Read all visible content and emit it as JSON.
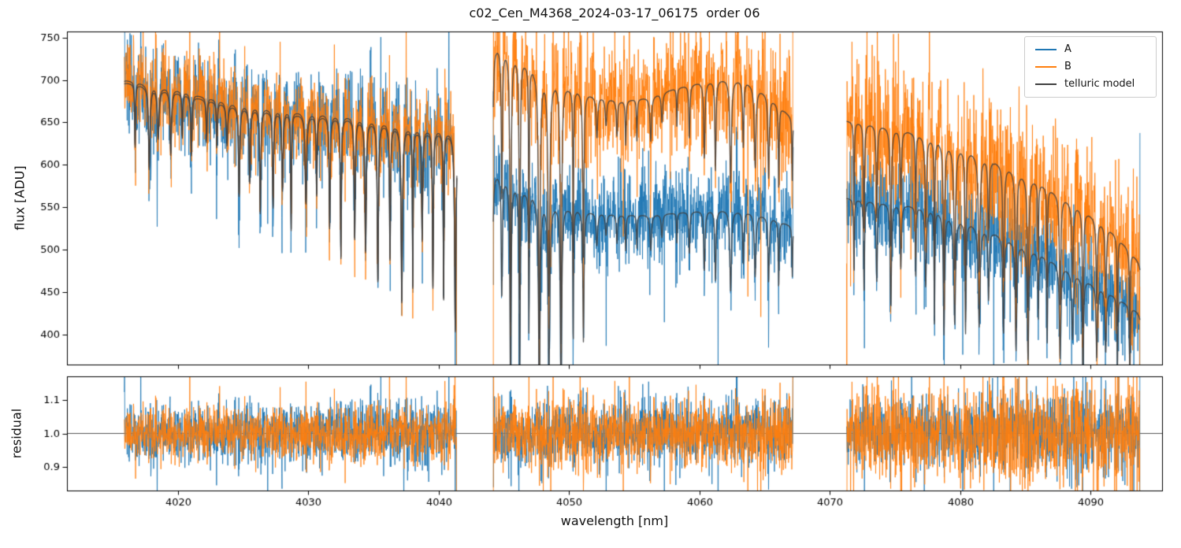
{
  "chart_data": {
    "type": "line",
    "title": "c02_Cen_M4368_2024-03-17_06175  order 06",
    "xlabel": "wavelength [nm]",
    "xlim": [
      4011.5,
      4095.5
    ],
    "xticks": [
      4020,
      4030,
      4040,
      4050,
      4060,
      4070,
      4080,
      4090
    ],
    "grid": false,
    "top_panel": {
      "ylabel": "flux [ADU]",
      "ylim": [
        365,
        757
      ],
      "yticks": [
        400,
        450,
        500,
        550,
        600,
        650,
        700,
        750
      ]
    },
    "bottom_panel": {
      "ylabel": "residual",
      "ylim": [
        0.83,
        1.17
      ],
      "yticks": [
        0.9,
        1.0,
        1.1
      ],
      "reference_line": 1.0
    },
    "legend": {
      "position": "upper right",
      "items": [
        {
          "label": "A",
          "color": "#1f77b4"
        },
        {
          "label": "B",
          "color": "#ff7f0e"
        },
        {
          "label": "telluric model",
          "color": "#404040"
        }
      ]
    },
    "segments": [
      {
        "x_range": [
          4015.9,
          4041.4
        ],
        "noise_sigma": {
          "A": 30,
          "B": 26
        },
        "continuum_A": [
          [
            4015.9,
            697
          ],
          [
            4018,
            691
          ],
          [
            4020,
            685
          ],
          [
            4022,
            677
          ],
          [
            4024,
            670
          ],
          [
            4027,
            663
          ],
          [
            4030,
            658
          ],
          [
            4033,
            654
          ],
          [
            4035,
            650
          ],
          [
            4036.5,
            645
          ],
          [
            4038,
            640
          ],
          [
            4041.4,
            635
          ]
        ],
        "continuum_B": [
          [
            4015.9,
            700
          ],
          [
            4018,
            694
          ],
          [
            4020,
            688
          ],
          [
            4022,
            680
          ],
          [
            4024,
            673
          ],
          [
            4027,
            666
          ],
          [
            4030,
            661
          ],
          [
            4033,
            657
          ],
          [
            4035,
            653
          ],
          [
            4036.5,
            648
          ],
          [
            4038,
            643
          ],
          [
            4041.4,
            638
          ]
        ]
      },
      {
        "x_range": [
          4044.2,
          4067.2
        ],
        "noise_sigma": {
          "A": 26,
          "B": 36
        },
        "continuum_A": [
          [
            4044.2,
            594
          ],
          [
            4046,
            576
          ],
          [
            4048,
            559
          ],
          [
            4050,
            549
          ],
          [
            4052,
            544
          ],
          [
            4054,
            541
          ],
          [
            4056,
            541
          ],
          [
            4058,
            543
          ],
          [
            4060,
            546
          ],
          [
            4062,
            547
          ],
          [
            4064,
            544
          ],
          [
            4065.5,
            538
          ],
          [
            4067.2,
            527
          ]
        ],
        "continuum_B": [
          [
            4044.2,
            744
          ],
          [
            4046,
            729
          ],
          [
            4048,
            707
          ],
          [
            4050,
            691
          ],
          [
            4052,
            681
          ],
          [
            4054,
            675
          ],
          [
            4056,
            679
          ],
          [
            4058,
            689
          ],
          [
            4060,
            697
          ],
          [
            4062,
            701
          ],
          [
            4063.5,
            699
          ],
          [
            4065,
            685
          ],
          [
            4067.2,
            654
          ]
        ]
      },
      {
        "x_range": [
          4071.3,
          4093.8
        ],
        "noise_sigma": {
          "A": 28,
          "B": 40
        },
        "continuum_A": [
          [
            4071.3,
            561
          ],
          [
            4074,
            556
          ],
          [
            4076,
            552
          ],
          [
            4078,
            547
          ],
          [
            4080,
            536
          ],
          [
            4082,
            524
          ],
          [
            4084,
            511
          ],
          [
            4086,
            496
          ],
          [
            4088,
            479
          ],
          [
            4090,
            461
          ],
          [
            4091.5,
            449
          ],
          [
            4093.8,
            426
          ]
        ],
        "continuum_B": [
          [
            4071.3,
            652
          ],
          [
            4074,
            646
          ],
          [
            4076,
            639
          ],
          [
            4078,
            630
          ],
          [
            4080,
            620
          ],
          [
            4082,
            608
          ],
          [
            4084,
            595
          ],
          [
            4086,
            579
          ],
          [
            4088,
            561
          ],
          [
            4090,
            541
          ],
          [
            4091.5,
            524
          ],
          [
            4093.8,
            486
          ]
        ]
      }
    ],
    "telluric_lines": {
      "start": 4015.7,
      "end": 4094.2,
      "mean_spacing": 0.92,
      "spacing_jitter": 0.26,
      "width": 0.055,
      "width_jitter": 0.025,
      "depth_jitter": 0.35,
      "depth_regions": [
        [
          4012,
          4024,
          0.11
        ],
        [
          4024,
          4032,
          0.16
        ],
        [
          4032,
          4037,
          0.24
        ],
        [
          4037,
          4042,
          0.3
        ],
        [
          4044,
          4051.5,
          0.36
        ],
        [
          4051.5,
          4059,
          0.06
        ],
        [
          4059,
          4068,
          0.13
        ],
        [
          4071,
          4096,
          0.2
        ]
      ]
    }
  }
}
